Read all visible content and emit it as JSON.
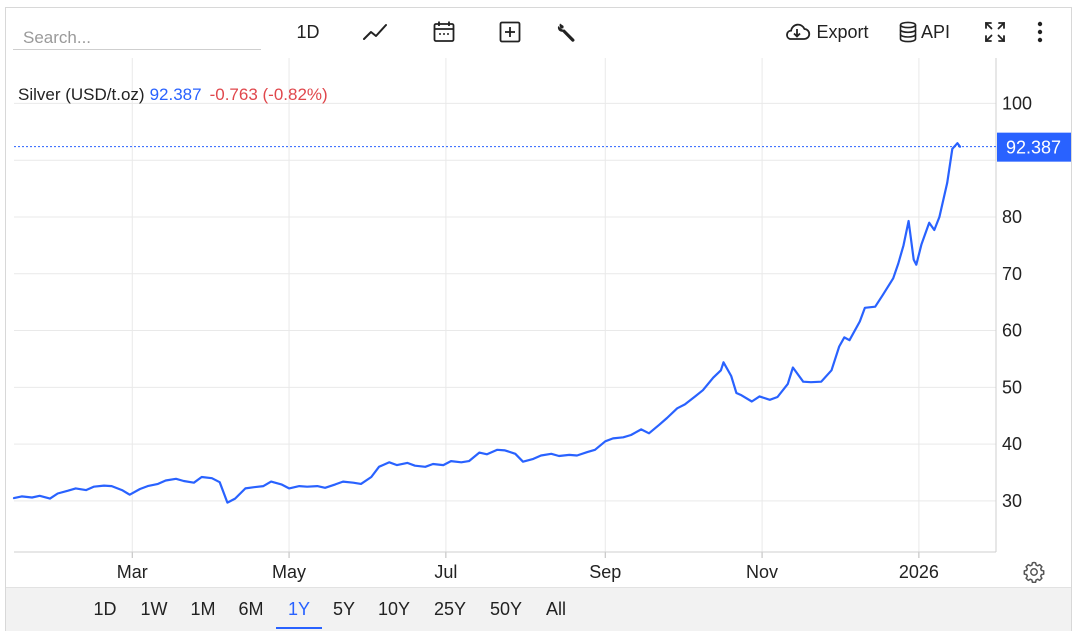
{
  "toolbar": {
    "search_placeholder": "Search...",
    "interval_label": "1D",
    "export_label": "Export",
    "api_label": "API",
    "icons": [
      "line-chart-icon",
      "calendar-icon",
      "add-indicator-icon",
      "wrench-icon",
      "cloud-download-icon",
      "database-icon",
      "fullscreen-icon",
      "more-vertical-icon"
    ]
  },
  "legend": {
    "name": "Silver (USD/t.oz)",
    "price": "92.387",
    "change": "-0.763 (-0.82%)"
  },
  "colors": {
    "line": "#2962ff",
    "negative": "#e0474c",
    "grid": "#e9e9e9",
    "last_price_badge": "#2962ff"
  },
  "range_buttons": [
    "1D",
    "1W",
    "1M",
    "6M",
    "1Y",
    "5Y",
    "10Y",
    "25Y",
    "50Y",
    "All"
  ],
  "active_range": "1Y",
  "chart_data": {
    "type": "line",
    "title": "Silver (USD/t.oz)",
    "xlabel": "",
    "ylabel": "",
    "x_ticks": [
      "Mar",
      "May",
      "Jul",
      "Sep",
      "Nov",
      "2026"
    ],
    "y_ticks": [
      30,
      40,
      50,
      60,
      70,
      80,
      100
    ],
    "ylim": [
      21,
      108
    ],
    "xlim": [
      "2025-01-14",
      "2026-01-31"
    ],
    "last_value": 92.387,
    "last_value_label": "92.387",
    "grid": true,
    "y_axis_side": "right",
    "series": [
      {
        "points": [
          [
            "2025-01-14",
            30.5
          ],
          [
            "2025-01-17",
            30.8
          ],
          [
            "2025-01-21",
            30.6
          ],
          [
            "2025-01-24",
            30.9
          ],
          [
            "2025-01-28",
            30.4
          ],
          [
            "2025-01-31",
            31.3
          ],
          [
            "2025-02-04",
            31.8
          ],
          [
            "2025-02-07",
            32.2
          ],
          [
            "2025-02-11",
            31.9
          ],
          [
            "2025-02-14",
            32.5
          ],
          [
            "2025-02-18",
            32.7
          ],
          [
            "2025-02-21",
            32.6
          ],
          [
            "2025-02-25",
            31.9
          ],
          [
            "2025-02-28",
            31.1
          ],
          [
            "2025-03-04",
            32.1
          ],
          [
            "2025-03-07",
            32.6
          ],
          [
            "2025-03-11",
            33.0
          ],
          [
            "2025-03-14",
            33.6
          ],
          [
            "2025-03-18",
            33.9
          ],
          [
            "2025-03-21",
            33.5
          ],
          [
            "2025-03-25",
            33.2
          ],
          [
            "2025-03-28",
            34.2
          ],
          [
            "2025-04-01",
            34.0
          ],
          [
            "2025-04-04",
            33.3
          ],
          [
            "2025-04-07",
            29.7
          ],
          [
            "2025-04-10",
            30.4
          ],
          [
            "2025-04-14",
            32.2
          ],
          [
            "2025-04-17",
            32.4
          ],
          [
            "2025-04-21",
            32.6
          ],
          [
            "2025-04-24",
            33.4
          ],
          [
            "2025-04-28",
            32.9
          ],
          [
            "2025-05-01",
            32.2
          ],
          [
            "2025-05-05",
            32.6
          ],
          [
            "2025-05-08",
            32.5
          ],
          [
            "2025-05-12",
            32.6
          ],
          [
            "2025-05-15",
            32.3
          ],
          [
            "2025-05-19",
            32.9
          ],
          [
            "2025-05-22",
            33.4
          ],
          [
            "2025-05-26",
            33.2
          ],
          [
            "2025-05-29",
            33.0
          ],
          [
            "2025-06-02",
            34.2
          ],
          [
            "2025-06-05",
            36.0
          ],
          [
            "2025-06-09",
            36.8
          ],
          [
            "2025-06-12",
            36.3
          ],
          [
            "2025-06-16",
            36.7
          ],
          [
            "2025-06-19",
            36.2
          ],
          [
            "2025-06-23",
            36.0
          ],
          [
            "2025-06-26",
            36.5
          ],
          [
            "2025-06-30",
            36.3
          ],
          [
            "2025-07-03",
            37.0
          ],
          [
            "2025-07-07",
            36.8
          ],
          [
            "2025-07-10",
            37.0
          ],
          [
            "2025-07-14",
            38.5
          ],
          [
            "2025-07-17",
            38.2
          ],
          [
            "2025-07-21",
            39.0
          ],
          [
            "2025-07-24",
            38.9
          ],
          [
            "2025-07-28",
            38.3
          ],
          [
            "2025-07-31",
            36.9
          ],
          [
            "2025-08-04",
            37.4
          ],
          [
            "2025-08-07",
            38.0
          ],
          [
            "2025-08-11",
            38.3
          ],
          [
            "2025-08-14",
            37.9
          ],
          [
            "2025-08-18",
            38.1
          ],
          [
            "2025-08-21",
            38.0
          ],
          [
            "2025-08-25",
            38.6
          ],
          [
            "2025-08-28",
            39.0
          ],
          [
            "2025-09-01",
            40.5
          ],
          [
            "2025-09-04",
            41.0
          ],
          [
            "2025-09-08",
            41.2
          ],
          [
            "2025-09-11",
            41.6
          ],
          [
            "2025-09-15",
            42.6
          ],
          [
            "2025-09-18",
            41.9
          ],
          [
            "2025-09-22",
            43.4
          ],
          [
            "2025-09-25",
            44.6
          ],
          [
            "2025-09-29",
            46.3
          ],
          [
            "2025-10-02",
            47.0
          ],
          [
            "2025-10-06",
            48.4
          ],
          [
            "2025-10-09",
            49.5
          ],
          [
            "2025-10-13",
            51.7
          ],
          [
            "2025-10-16",
            53.0
          ],
          [
            "2025-10-17",
            54.4
          ],
          [
            "2025-10-20",
            52.0
          ],
          [
            "2025-10-22",
            49.0
          ],
          [
            "2025-10-24",
            48.6
          ],
          [
            "2025-10-28",
            47.5
          ],
          [
            "2025-10-31",
            48.4
          ],
          [
            "2025-11-04",
            47.8
          ],
          [
            "2025-11-07",
            48.3
          ],
          [
            "2025-11-11",
            50.6
          ],
          [
            "2025-11-13",
            53.5
          ],
          [
            "2025-11-17",
            51.0
          ],
          [
            "2025-11-20",
            50.9
          ],
          [
            "2025-11-24",
            51.0
          ],
          [
            "2025-11-28",
            53.0
          ],
          [
            "2025-12-01",
            57.2
          ],
          [
            "2025-12-03",
            58.8
          ],
          [
            "2025-12-05",
            58.3
          ],
          [
            "2025-12-09",
            61.6
          ],
          [
            "2025-12-11",
            64.0
          ],
          [
            "2025-12-15",
            64.2
          ],
          [
            "2025-12-18",
            66.3
          ],
          [
            "2025-12-22",
            69.2
          ],
          [
            "2025-12-24",
            71.8
          ],
          [
            "2025-12-26",
            75.0
          ],
          [
            "2025-12-28",
            79.3
          ],
          [
            "2025-12-30",
            72.5
          ],
          [
            "2025-12-31",
            71.6
          ],
          [
            "2026-01-02",
            75.2
          ],
          [
            "2026-01-05",
            79.0
          ],
          [
            "2026-01-07",
            77.7
          ],
          [
            "2026-01-09",
            80.0
          ],
          [
            "2026-01-12",
            86.0
          ],
          [
            "2026-01-14",
            92.0
          ],
          [
            "2026-01-16",
            93.0
          ],
          [
            "2026-01-17",
            92.387
          ]
        ]
      }
    ]
  }
}
